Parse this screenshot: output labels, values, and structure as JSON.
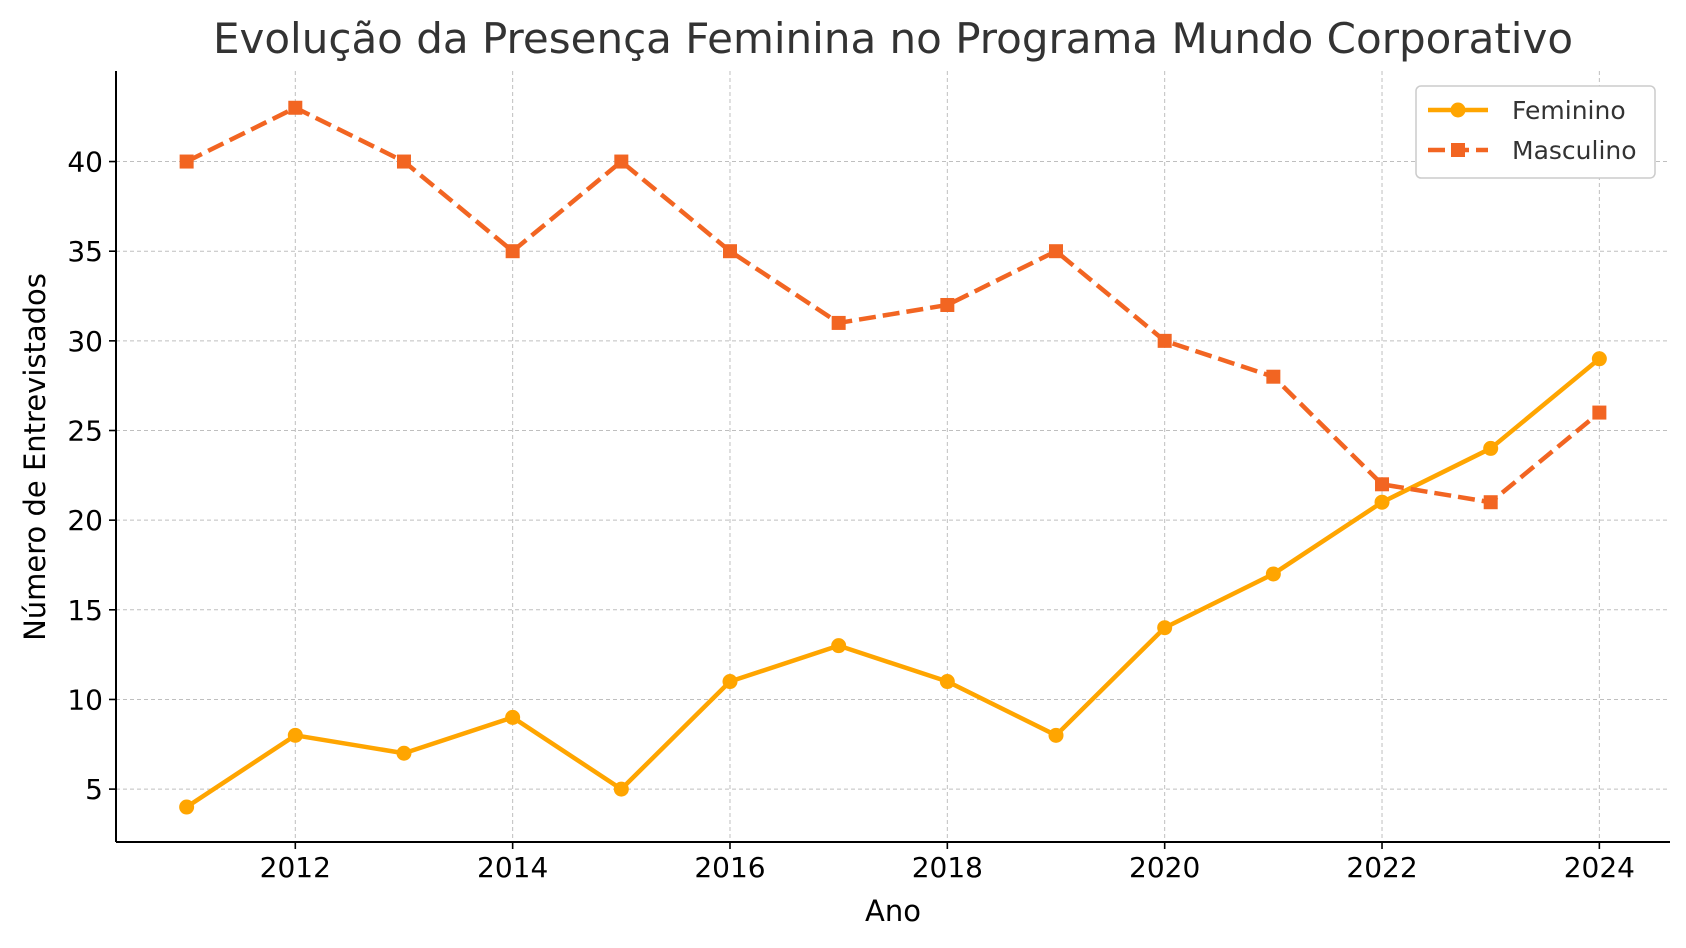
{
  "chart_data": {
    "type": "line",
    "title": "Evolução da Presença Feminina no Programa Mundo Corporativo",
    "xlabel": "Ano",
    "ylabel": "Número de Entrevistados",
    "x": [
      2011,
      2012,
      2013,
      2014,
      2015,
      2016,
      2017,
      2018,
      2019,
      2020,
      2021,
      2022,
      2023,
      2024
    ],
    "xlim": [
      2010.35,
      2024.65
    ],
    "ylim": [
      2.05,
      45.05
    ],
    "xticks": [
      "2012",
      "2014",
      "2016",
      "2018",
      "2020",
      "2022",
      "2024"
    ],
    "yticks": [
      "5",
      "10",
      "15",
      "20",
      "25",
      "30",
      "35",
      "40"
    ],
    "grid": true,
    "legend_position": "top-right",
    "series": [
      {
        "name": "Feminino",
        "values": [
          4,
          8,
          7,
          9,
          5,
          11,
          13,
          11,
          8,
          14,
          17,
          21,
          24,
          29
        ],
        "color": "#FFA500",
        "line_style": "solid",
        "marker": "circle"
      },
      {
        "name": "Masculino",
        "values": [
          40,
          43,
          40,
          35,
          40,
          35,
          31,
          32,
          35,
          30,
          28,
          22,
          21,
          26
        ],
        "color": "#F26522",
        "line_style": "dashed",
        "marker": "square"
      }
    ]
  }
}
